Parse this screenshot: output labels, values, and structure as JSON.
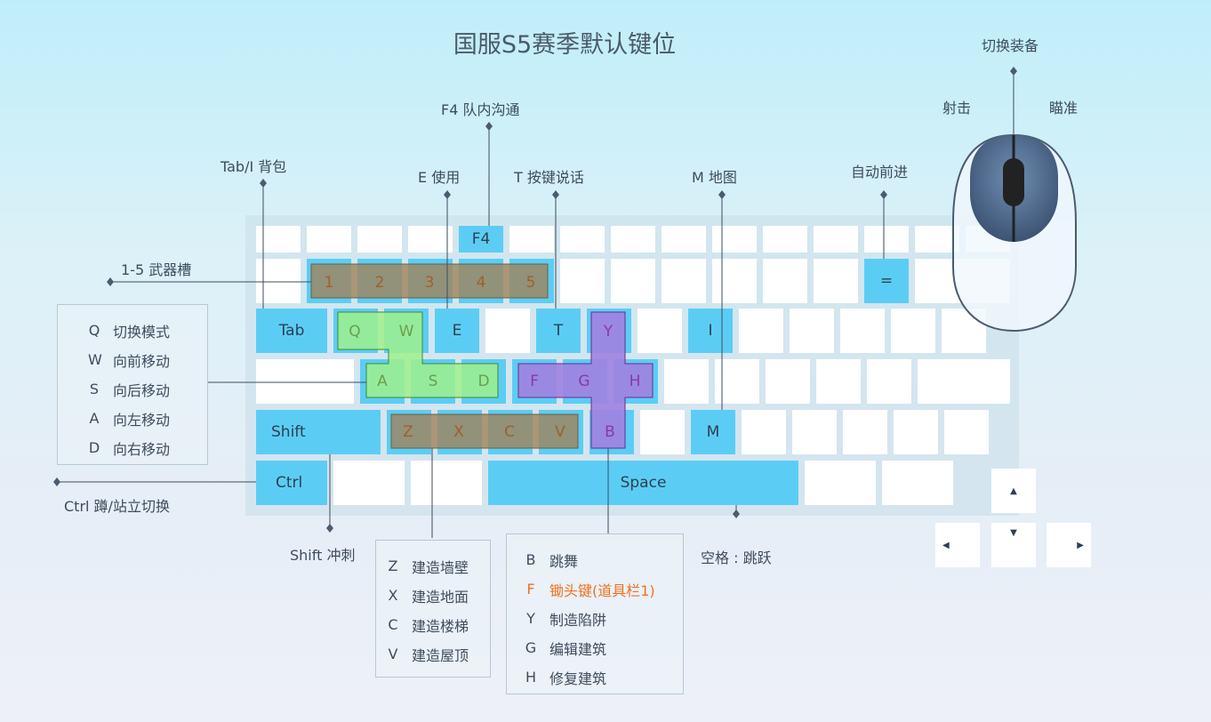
{
  "title": "国服S5赛季默认键位",
  "keyboard": {
    "rows": [
      [
        "",
        "",
        "",
        "",
        "F4",
        "",
        "",
        "",
        "",
        "",
        "",
        "",
        "",
        "",
        ""
      ],
      [
        "",
        "1",
        "2",
        "3",
        "4",
        "5",
        "",
        "",
        "",
        "",
        "",
        "",
        "=",
        ""
      ],
      [
        "Tab",
        "Q",
        "W",
        "E",
        "",
        "T",
        "Y",
        "",
        "I",
        "",
        "",
        "",
        "",
        ""
      ],
      [
        "",
        "A",
        "S",
        "D",
        "F",
        "G",
        "H",
        "",
        "",
        "",
        "",
        "",
        ""
      ],
      [
        "Shift",
        "Z",
        "X",
        "C",
        "V",
        "B",
        "",
        "M",
        "",
        "",
        "",
        "",
        ""
      ],
      [
        "Ctrl",
        "",
        "",
        "Space",
        "",
        ""
      ]
    ]
  },
  "callouts": {
    "f4": "F4  队内沟通",
    "tab": "Tab/I 背包",
    "e": "E 使用",
    "t": "T  按键说话",
    "m": "M  地图",
    "auto": "自动前进",
    "weapons": "1-5  武器槽",
    "ctrl": "Ctrl  蹲/站立切换",
    "shift": "Shift  冲刺",
    "space": "空格 : 跳跃"
  },
  "mouse": {
    "wheel": "切换装备",
    "left": "射击",
    "right": "瞄准"
  },
  "move_box": [
    {
      "k": "Q",
      "t": "切换模式"
    },
    {
      "k": "W",
      "t": "向前移动"
    },
    {
      "k": "S",
      "t": "向后移动"
    },
    {
      "k": "A",
      "t": "向左移动"
    },
    {
      "k": "D",
      "t": "向右移动"
    }
  ],
  "build_box": [
    {
      "k": "Z",
      "t": "建造墙壁"
    },
    {
      "k": "X",
      "t": "建造地面"
    },
    {
      "k": "C",
      "t": "建造楼梯"
    },
    {
      "k": "V",
      "t": "建造屋顶"
    }
  ],
  "edit_box": [
    {
      "k": "B",
      "t": "跳舞"
    },
    {
      "k": "F",
      "t": "锄头键(道具栏1)",
      "highlight": true
    },
    {
      "k": "Y",
      "t": "制造陷阱"
    },
    {
      "k": "G",
      "t": "编辑建筑"
    },
    {
      "k": "H",
      "t": "修复建筑"
    }
  ],
  "colors": {
    "key_active": "#5bcdf5",
    "key": "#ffffff",
    "highlight_text": "#f07020",
    "weapon_overlay": "#a08a60",
    "move_overlay": "#98e890",
    "build_overlay": "#9a78e0"
  }
}
